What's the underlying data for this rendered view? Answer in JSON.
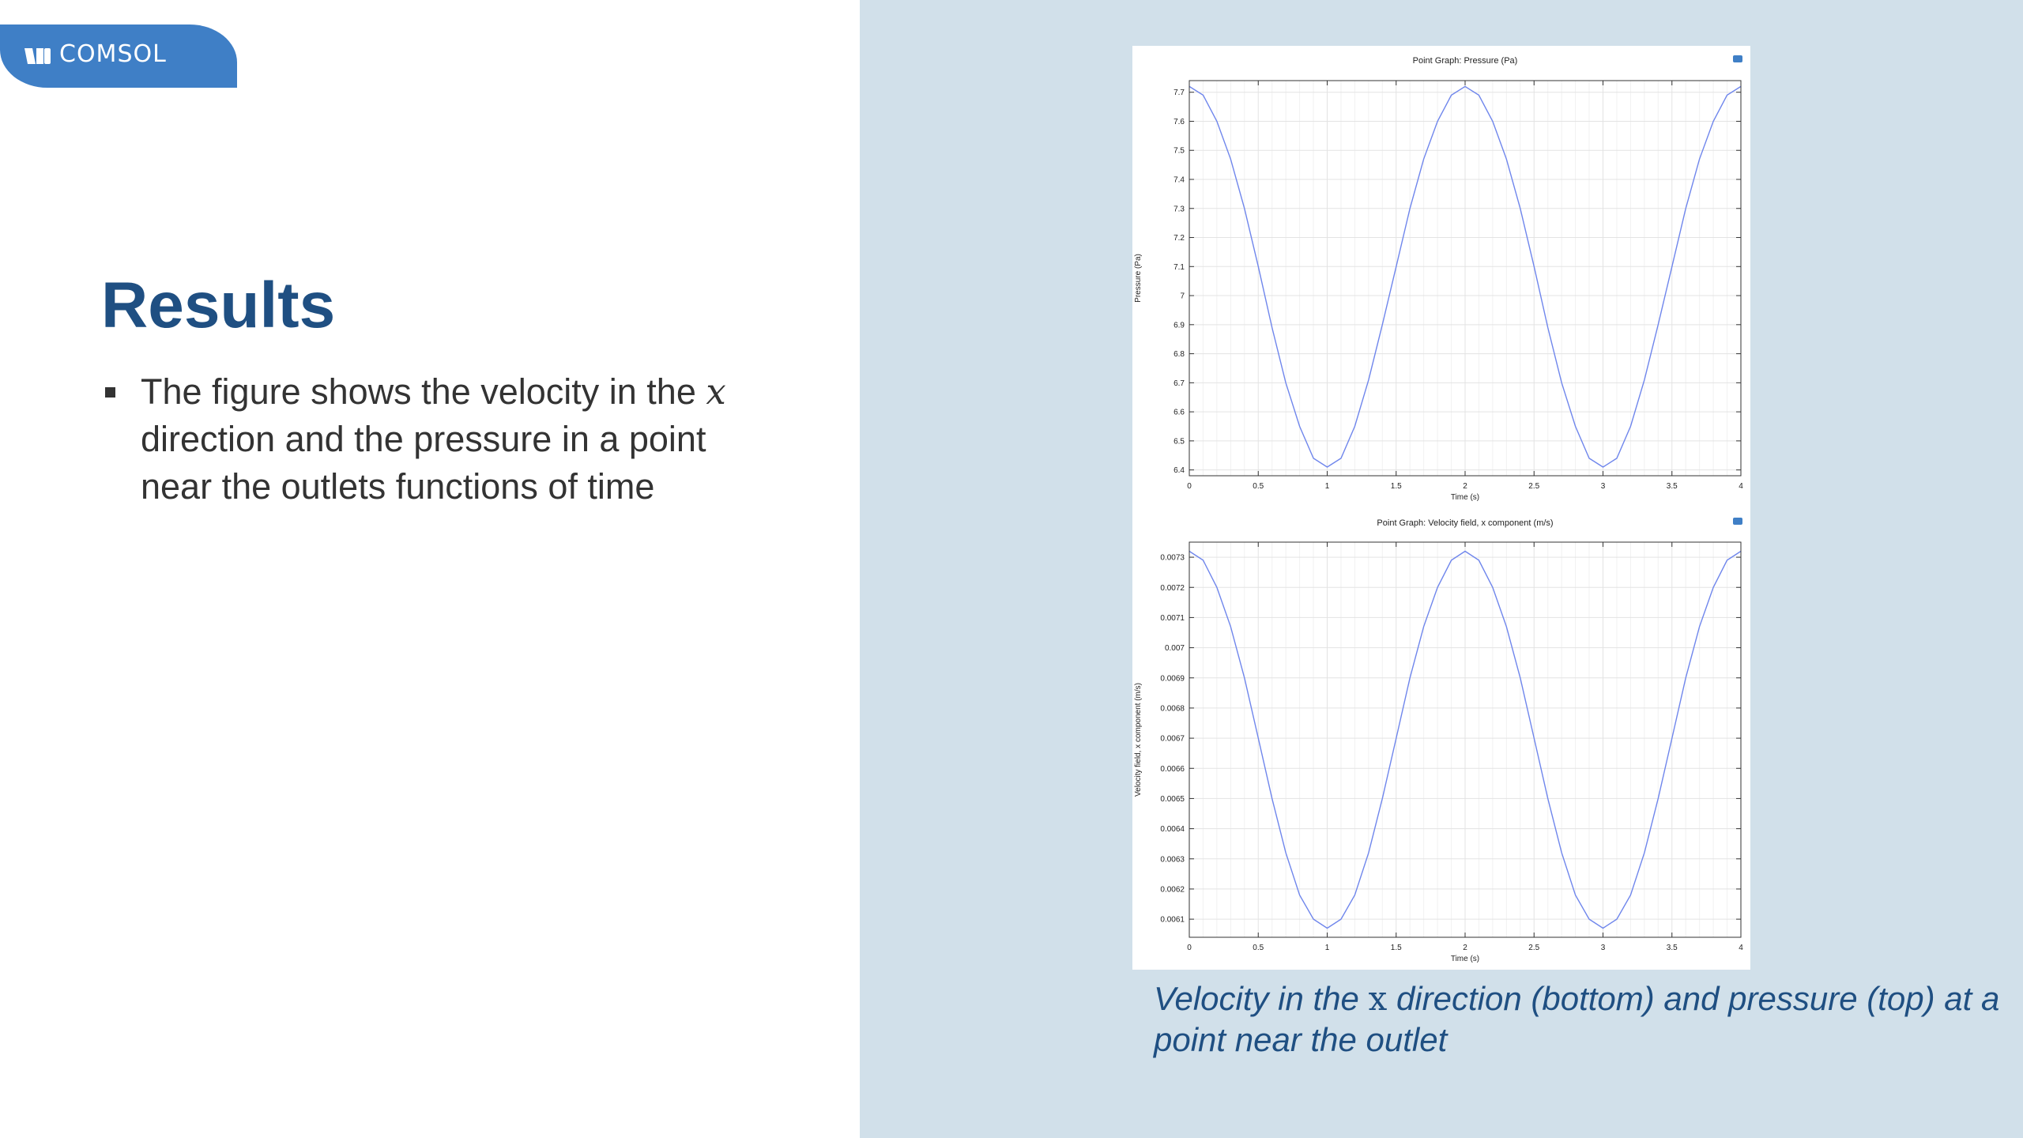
{
  "brand": {
    "logo_text": "COMSOL",
    "accent": "#3f7fc6",
    "title_color": "#1f4f82",
    "panel_bg": "#d1e0ea"
  },
  "slide": {
    "title": "Results",
    "bullet": {
      "before": "The figure shows the velocity in the ",
      "var": "x",
      "after": " direction and the pressure in a point near the outlets functions of time"
    },
    "caption": {
      "before": "Velocity in the ",
      "var": "x",
      "after": " direction (bottom) and pressure (top) at a point near the outlet"
    }
  },
  "chart_data": [
    {
      "type": "line",
      "title": "Point Graph: Pressure (Pa)",
      "xlabel": "Time (s)",
      "ylabel": "Pressure (Pa)",
      "xlim": [
        0,
        4
      ],
      "ylim": [
        6.38,
        7.74
      ],
      "grid": true,
      "x_ticks": [
        0,
        0.5,
        1,
        1.5,
        2,
        2.5,
        3,
        3.5,
        4
      ],
      "x_tick_labels": [
        "0",
        "0.5",
        "1",
        "1.5",
        "2",
        "2.5",
        "3",
        "3.5",
        "4"
      ],
      "y_ticks": [
        6.4,
        6.5,
        6.6,
        6.7,
        6.8,
        6.9,
        7,
        7.1,
        7.2,
        7.3,
        7.4,
        7.5,
        7.6,
        7.7
      ],
      "y_tick_labels": [
        "6.4",
        "6.5",
        "6.6",
        "6.7",
        "6.8",
        "6.9",
        "7",
        "7.1",
        "7.2",
        "7.3",
        "7.4",
        "7.5",
        "7.6",
        "7.7"
      ],
      "line_color": "#6f86ec",
      "x": [
        0,
        0.1,
        0.2,
        0.3,
        0.4,
        0.5,
        0.6,
        0.7,
        0.8,
        0.9,
        1.0,
        1.1,
        1.2,
        1.3,
        1.4,
        1.5,
        1.6,
        1.7,
        1.8,
        1.9,
        2.0,
        2.1,
        2.2,
        2.3,
        2.4,
        2.5,
        2.6,
        2.7,
        2.8,
        2.9,
        3.0,
        3.1,
        3.2,
        3.3,
        3.4,
        3.5,
        3.6,
        3.7,
        3.8,
        3.9,
        4.0
      ],
      "y": [
        7.72,
        7.69,
        7.6,
        7.47,
        7.3,
        7.1,
        6.89,
        6.7,
        6.55,
        6.44,
        6.41,
        6.44,
        6.55,
        6.71,
        6.9,
        7.1,
        7.3,
        7.47,
        7.6,
        7.69,
        7.72,
        7.69,
        7.6,
        7.47,
        7.3,
        7.1,
        6.89,
        6.7,
        6.55,
        6.44,
        6.41,
        6.44,
        6.55,
        6.71,
        6.9,
        7.1,
        7.3,
        7.47,
        7.6,
        7.69,
        7.72
      ]
    },
    {
      "type": "line",
      "title": "Point Graph: Velocity field, x component (m/s)",
      "xlabel": "Time (s)",
      "ylabel": "Velocity field, x component (m/s)",
      "xlim": [
        0,
        4
      ],
      "ylim": [
        0.00604,
        0.00735
      ],
      "grid": true,
      "x_ticks": [
        0,
        0.5,
        1,
        1.5,
        2,
        2.5,
        3,
        3.5,
        4
      ],
      "x_tick_labels": [
        "0",
        "0.5",
        "1",
        "1.5",
        "2",
        "2.5",
        "3",
        "3.5",
        "4"
      ],
      "y_ticks": [
        0.0061,
        0.0062,
        0.0063,
        0.0064,
        0.0065,
        0.0066,
        0.0067,
        0.0068,
        0.0069,
        0.007,
        0.0071,
        0.0072,
        0.0073
      ],
      "y_tick_labels": [
        "0.0061",
        "0.0062",
        "0.0063",
        "0.0064",
        "0.0065",
        "0.0066",
        "0.0067",
        "0.0068",
        "0.0069",
        "0.007",
        "0.0071",
        "0.0072",
        "0.0073"
      ],
      "line_color": "#6f86ec",
      "x": [
        0,
        0.1,
        0.2,
        0.3,
        0.4,
        0.5,
        0.6,
        0.7,
        0.8,
        0.9,
        1.0,
        1.1,
        1.2,
        1.3,
        1.4,
        1.5,
        1.6,
        1.7,
        1.8,
        1.9,
        2.0,
        2.1,
        2.2,
        2.3,
        2.4,
        2.5,
        2.6,
        2.7,
        2.8,
        2.9,
        3.0,
        3.1,
        3.2,
        3.3,
        3.4,
        3.5,
        3.6,
        3.7,
        3.8,
        3.9,
        4.0
      ],
      "y": [
        0.00732,
        0.00729,
        0.0072,
        0.00707,
        0.0069,
        0.0067,
        0.0065,
        0.00632,
        0.00618,
        0.0061,
        0.00607,
        0.0061,
        0.00618,
        0.00632,
        0.0065,
        0.0067,
        0.0069,
        0.00707,
        0.0072,
        0.00729,
        0.00732,
        0.00729,
        0.0072,
        0.00707,
        0.0069,
        0.0067,
        0.0065,
        0.00632,
        0.00618,
        0.0061,
        0.00607,
        0.0061,
        0.00618,
        0.00632,
        0.0065,
        0.0067,
        0.0069,
        0.00707,
        0.0072,
        0.00729,
        0.00732
      ]
    }
  ]
}
